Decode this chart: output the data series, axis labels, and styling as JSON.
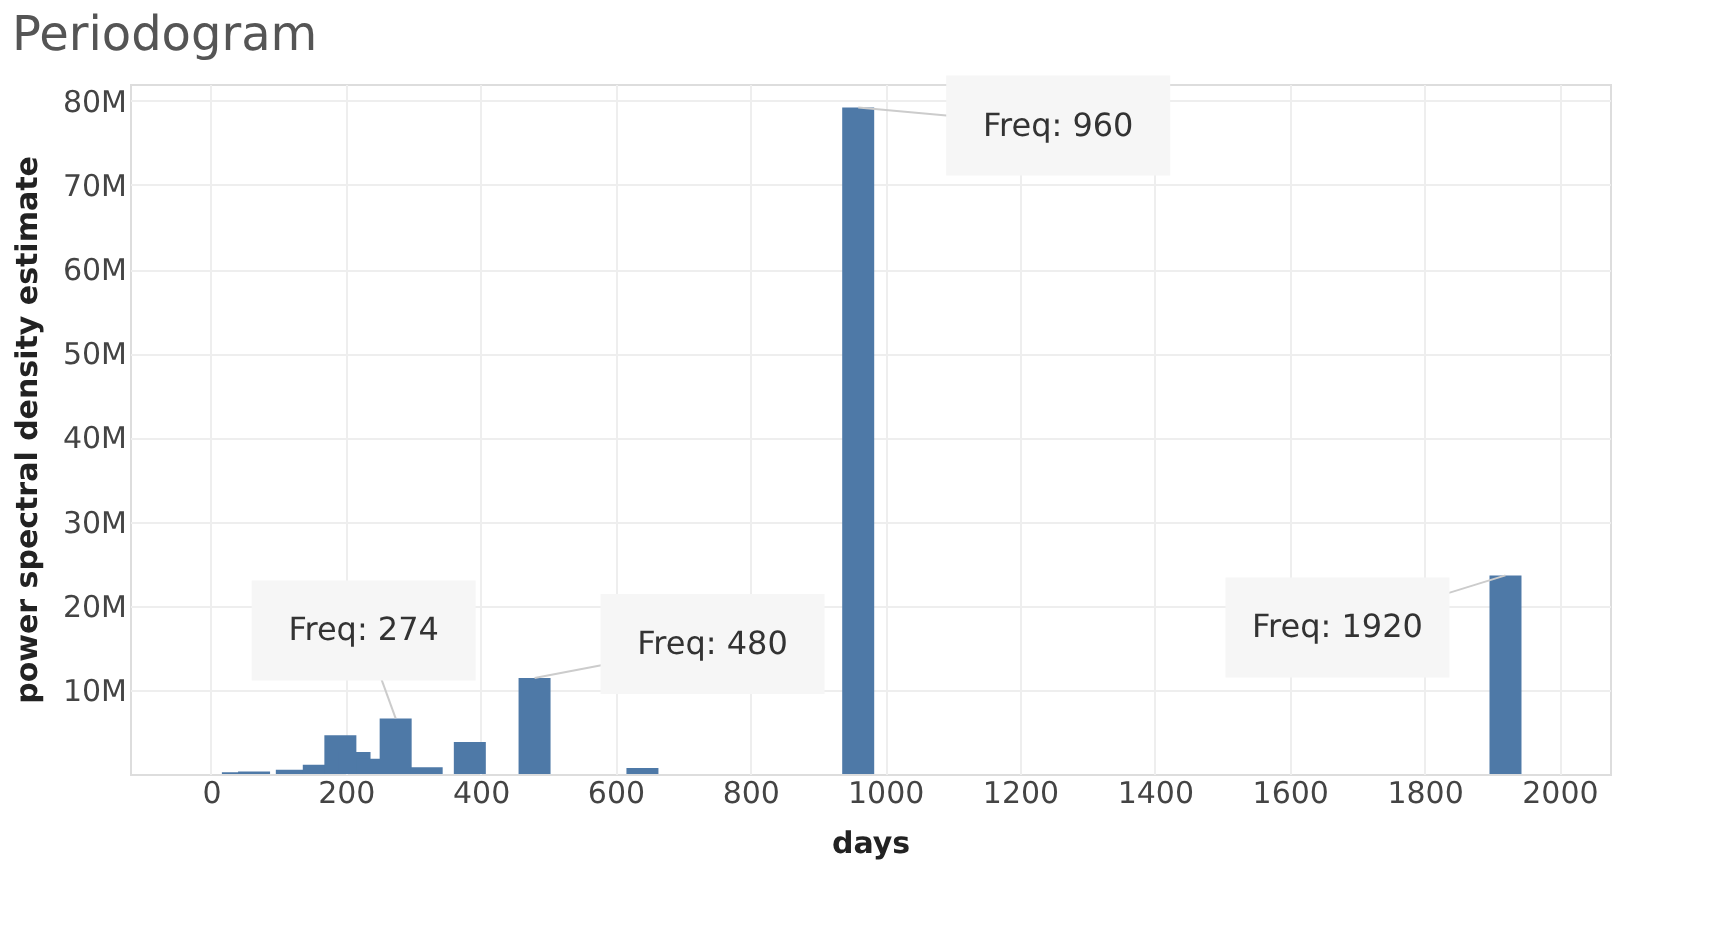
{
  "chart_data": {
    "type": "bar",
    "title": "Periodogram",
    "xlabel": "days",
    "ylabel": "power spectral density estimate",
    "x": [
      40,
      64,
      96,
      120,
      160,
      192,
      213,
      240,
      274,
      320,
      384,
      480,
      640,
      960,
      1920
    ],
    "series": [
      {
        "color": "#4e79a7",
        "values": [
          200000,
          300000,
          null,
          500000,
          1100000,
          4600000,
          2600000,
          1800000,
          6600000,
          800000,
          3800000,
          11400000,
          700000,
          79200000,
          23600000
        ]
      }
    ],
    "xlim": [
      -120,
      2075
    ],
    "xticks": [
      0,
      200,
      400,
      600,
      800,
      1000,
      1200,
      1400,
      1600,
      1800,
      2000
    ],
    "ylim": [
      0,
      82000000
    ],
    "yticks": [
      {
        "value": 10000000,
        "label": "10M"
      },
      {
        "value": 20000000,
        "label": "20M"
      },
      {
        "value": 30000000,
        "label": "30M"
      },
      {
        "value": 40000000,
        "label": "40M"
      },
      {
        "value": 50000000,
        "label": "50M"
      },
      {
        "value": 60000000,
        "label": "60M"
      },
      {
        "value": 70000000,
        "label": "70M"
      },
      {
        "value": 80000000,
        "label": "80M"
      }
    ],
    "annotations": [
      {
        "text": "Freq: 274",
        "x": 274,
        "y": 6600000
      },
      {
        "text": "Freq: 480",
        "x": 480,
        "y": 11400000
      },
      {
        "text": "Freq: 960",
        "x": 960,
        "y": 79200000
      },
      {
        "text": "Freq: 1920",
        "x": 1920,
        "y": 23600000
      }
    ],
    "grid": true
  }
}
